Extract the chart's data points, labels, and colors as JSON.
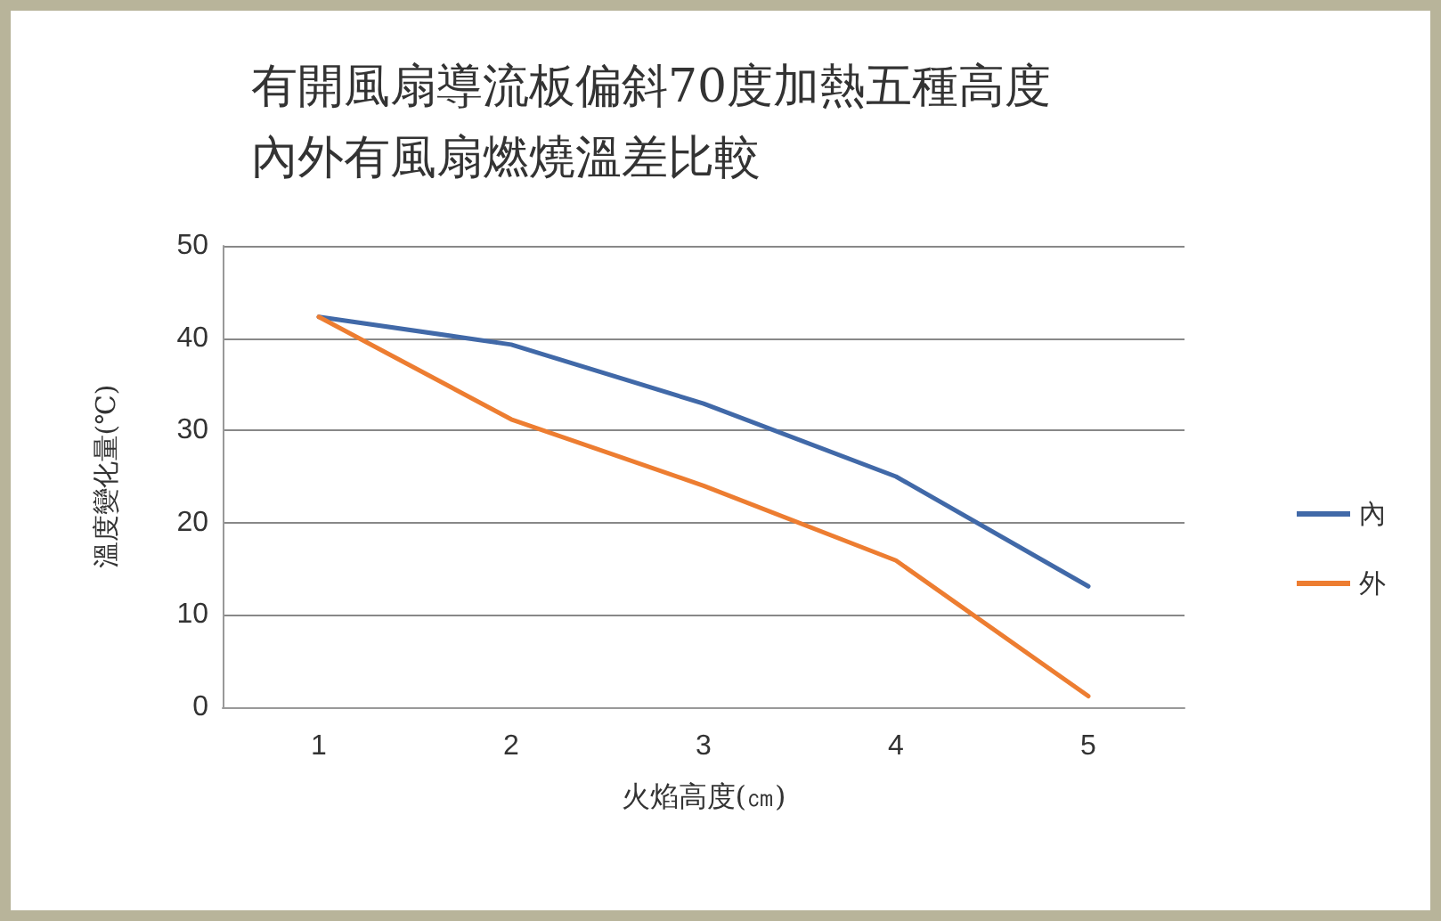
{
  "chart_data": {
    "type": "line",
    "title": "有開風扇導流板偏斜70度加熱五種高度內外有風扇燃燒溫差比較",
    "xlabel": "火焰高度(㎝)",
    "ylabel": "溫度變化量(℃)",
    "categories": [
      "1",
      "2",
      "3",
      "4",
      "5"
    ],
    "series": [
      {
        "name": "內",
        "color": "#4169a8",
        "values": [
          42.3,
          39.3,
          32.9,
          25,
          13.1
        ]
      },
      {
        "name": "外",
        "color": "#ed7d31",
        "values": [
          42.3,
          31.2,
          24,
          15.9,
          1.2
        ]
      }
    ],
    "ylim": [
      0,
      50
    ],
    "yticks": [
      0,
      10,
      20,
      30,
      40,
      50
    ],
    "grid": "y",
    "legend": "right",
    "marker": "none",
    "line_style": "solid"
  }
}
